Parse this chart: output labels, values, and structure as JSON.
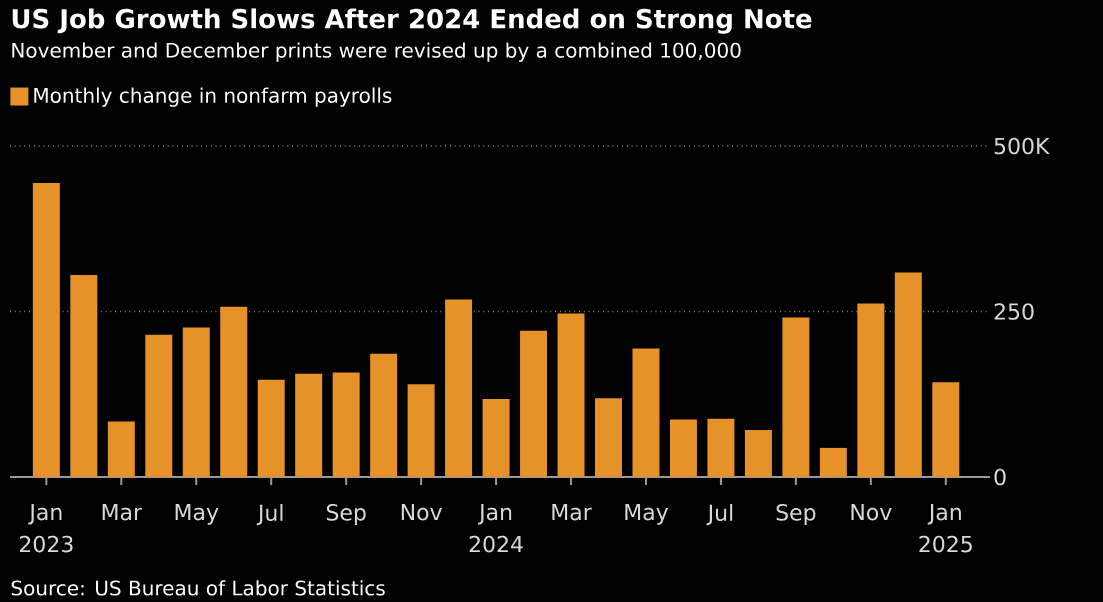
{
  "chart_data": {
    "type": "bar",
    "title": "US Job Growth Slows After 2024 Ended on Strong Note",
    "subtitle": "November and December prints were revised up by a combined 100,000",
    "categories": [
      "Jan 2023",
      null,
      "Mar",
      null,
      "May",
      null,
      "Jul",
      null,
      "Sep",
      null,
      "Nov",
      null,
      "Jan 2024",
      null,
      "Mar",
      null,
      "May",
      null,
      "Jul",
      null,
      "Sep",
      null,
      "Nov",
      null,
      "Jan 2025"
    ],
    "series": [
      {
        "name": "Monthly change in nonfarm payrolls",
        "color": "#e69229",
        "values": [
          444,
          305,
          84,
          215,
          226,
          257,
          147,
          156,
          158,
          186,
          140,
          268,
          118,
          221,
          247,
          119,
          194,
          87,
          88,
          71,
          241,
          44,
          262,
          309,
          143
        ]
      }
    ],
    "ylim": [
      0,
      500
    ],
    "yticks": [
      0,
      250,
      {
        "value": 500,
        "label": "500K"
      }
    ],
    "grid": "y",
    "legend": "top left",
    "annotations": [
      "Source: US Bureau of Labor Statistics"
    ]
  }
}
